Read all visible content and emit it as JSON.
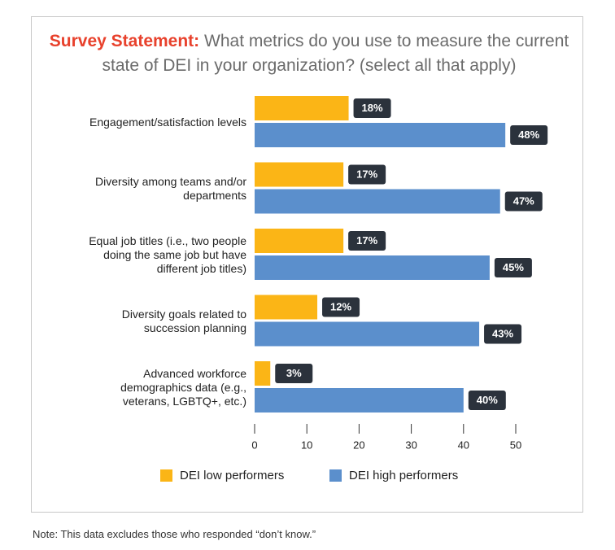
{
  "chart_data": {
    "type": "bar",
    "orientation": "horizontal",
    "title_lead": "Survey Statement:",
    "title": "What metrics do you use to measure the current state of DEI in your organization? (select all that apply)",
    "categories": [
      "Engagement/satisfaction levels",
      "Diversity among teams and/or departments",
      "Equal job titles (i.e., two people doing the same job but have different job titles)",
      "Diversity goals related to succession planning",
      "Advanced workforce demographics data (e.g., veterans, LGBTQ+, etc.)"
    ],
    "series": [
      {
        "name": "DEI low performers",
        "color": "#fbb516",
        "values": [
          18,
          17,
          17,
          12,
          3
        ],
        "value_labels": [
          "18%",
          "17%",
          "17%",
          "12%",
          "3%"
        ]
      },
      {
        "name": "DEI high performers",
        "color": "#5b8fcc",
        "values": [
          48,
          47,
          45,
          43,
          40
        ],
        "value_labels": [
          "48%",
          "47%",
          "45%",
          "43%",
          "40%"
        ]
      }
    ],
    "xlim": [
      0,
      50
    ],
    "xticks": [
      0,
      10,
      20,
      30,
      40,
      50
    ],
    "legend": "bottom",
    "note": "Note: This data excludes those who responded “don’t know.”"
  }
}
